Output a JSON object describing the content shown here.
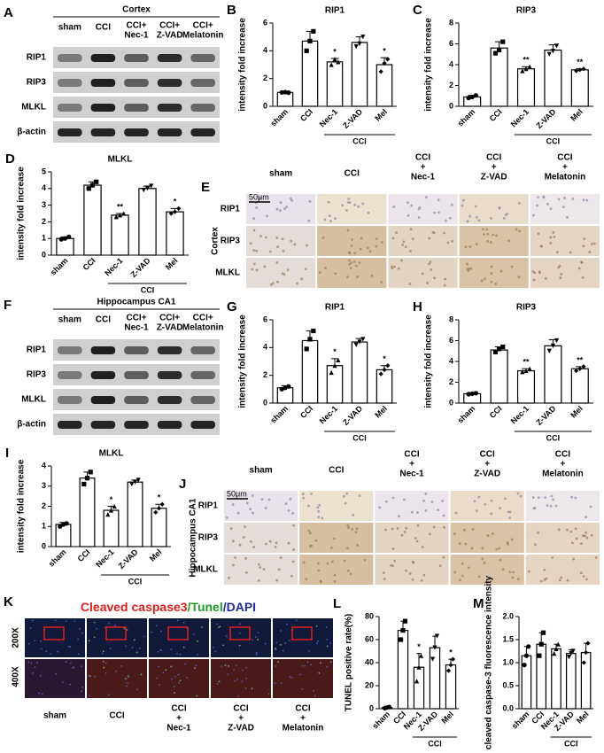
{
  "blots": [
    {
      "panel": "A",
      "title": "Cortex",
      "lanes": [
        [
          "sham"
        ],
        [
          "CCI"
        ],
        [
          "CCI+",
          "Nec-1"
        ],
        [
          "CCI+",
          "Z-VAD"
        ],
        [
          "CCI+",
          "Melatonin"
        ]
      ],
      "rows": [
        "RIP1",
        "RIP3",
        "MLKL",
        "β-actin"
      ]
    },
    {
      "panel": "F",
      "title": "Hippocampus CA1",
      "lanes": [
        [
          "sham"
        ],
        [
          "CCI"
        ],
        [
          "CCI+",
          "Nec-1"
        ],
        [
          "CCI+",
          "Z-VAD"
        ],
        [
          "CCI+",
          "Melatonin"
        ]
      ],
      "rows": [
        "RIP1",
        "RIP3",
        "MLKL",
        "β-actin"
      ]
    }
  ],
  "ihc": [
    {
      "panel": "E",
      "region": "Cortex",
      "scale_bar": "50μm",
      "columns": [
        [
          "sham"
        ],
        [
          "CCI"
        ],
        [
          "CCI",
          "+",
          "Nec-1"
        ],
        [
          "CCI",
          "+",
          "Z-VAD"
        ],
        [
          "CCI",
          "+",
          "Melatonin"
        ]
      ],
      "rows": [
        "RIP1",
        "RIP3",
        "MLKL"
      ]
    },
    {
      "panel": "J",
      "region": "Hippocampus CA1",
      "scale_bar": "50μm",
      "columns": [
        [
          "sham"
        ],
        [
          "CCI"
        ],
        [
          "CCI",
          "+",
          "Nec-1"
        ],
        [
          "CCI",
          "+",
          "Z-VAD"
        ],
        [
          "CCI",
          "+",
          "Melatonin"
        ]
      ],
      "rows": [
        "RIP1",
        "RIP3",
        "MLKL"
      ]
    }
  ],
  "fluorescence": {
    "panel": "K",
    "title": [
      "Cleaved caspase3",
      "/Tunel",
      "/DAPI"
    ],
    "rows": [
      "200X",
      "400X"
    ],
    "columns": [
      [
        "sham"
      ],
      [
        "CCI"
      ],
      [
        "CCI",
        "+",
        "Nec-1"
      ],
      [
        "CCI",
        "+",
        "Z-VAD"
      ],
      [
        "CCI",
        "+",
        "Melatonin"
      ]
    ]
  },
  "chart_data": [
    {
      "type": "bar",
      "panel": "B",
      "title": "RIP1",
      "ylabel": "intensity fold increase",
      "categories": [
        "sham",
        "CCI",
        "Nec-1",
        "Z-VAD",
        "Mel"
      ],
      "group_label": "CCI",
      "values": [
        1.0,
        4.7,
        3.2,
        4.6,
        3.0
      ],
      "errors": [
        0.05,
        0.7,
        0.25,
        0.4,
        0.5
      ],
      "points": [
        [
          1.0,
          1.02,
          0.98
        ],
        [
          4.0,
          4.7,
          5.4
        ],
        [
          3.0,
          3.4,
          3.2
        ],
        [
          4.3,
          4.5,
          5.0
        ],
        [
          2.5,
          3.1,
          3.4
        ]
      ],
      "annotations": [
        null,
        null,
        "*",
        null,
        "*"
      ],
      "ylim": [
        0,
        6
      ],
      "yticks": [
        0,
        2,
        4,
        6
      ]
    },
    {
      "type": "bar",
      "panel": "C",
      "title": "RIP3",
      "ylabel": "intensity fold increase",
      "categories": [
        "sham",
        "CCI",
        "Nec-1",
        "Z-VAD",
        "Mel"
      ],
      "group_label": "CCI",
      "values": [
        0.9,
        5.6,
        3.6,
        5.4,
        3.5
      ],
      "errors": [
        0.15,
        0.6,
        0.2,
        0.5,
        0.1
      ],
      "points": [
        [
          0.8,
          0.9,
          1.05
        ],
        [
          5.1,
          5.4,
          6.2
        ],
        [
          3.4,
          3.6,
          3.8
        ],
        [
          5.0,
          5.3,
          5.8
        ],
        [
          3.4,
          3.5,
          3.6
        ]
      ],
      "annotations": [
        null,
        null,
        "**",
        null,
        "**"
      ],
      "ylim": [
        0,
        8
      ],
      "yticks": [
        0,
        2,
        4,
        6,
        8
      ]
    },
    {
      "type": "bar",
      "panel": "D",
      "title": "MLKL",
      "ylabel": "intensity fold increase",
      "categories": [
        "sham",
        "CCI",
        "Nec-1",
        "Z-VAD",
        "Mel"
      ],
      "group_label": "CCI",
      "values": [
        1.0,
        4.2,
        2.4,
        4.0,
        2.6
      ],
      "errors": [
        0.1,
        0.2,
        0.1,
        0.15,
        0.2
      ],
      "points": [
        [
          0.95,
          1.0,
          1.1
        ],
        [
          4.0,
          4.2,
          4.4
        ],
        [
          2.3,
          2.4,
          2.5
        ],
        [
          3.9,
          4.0,
          4.15
        ],
        [
          2.5,
          2.6,
          2.8
        ]
      ],
      "annotations": [
        null,
        null,
        "**",
        null,
        "*"
      ],
      "ylim": [
        0,
        5
      ],
      "yticks": [
        0,
        1,
        2,
        3,
        4,
        5
      ]
    },
    {
      "type": "bar",
      "panel": "G",
      "title": "RIP1",
      "ylabel": "intensity fold increase",
      "categories": [
        "sham",
        "CCI",
        "Nec-1",
        "Z-VAD",
        "Mel"
      ],
      "group_label": "CCI",
      "values": [
        1.1,
        4.5,
        2.7,
        4.4,
        2.4
      ],
      "errors": [
        0.15,
        0.7,
        0.5,
        0.25,
        0.3
      ],
      "points": [
        [
          1.0,
          1.1,
          1.2
        ],
        [
          3.9,
          4.6,
          5.2
        ],
        [
          2.2,
          2.7,
          3.1
        ],
        [
          4.2,
          4.4,
          4.6
        ],
        [
          2.1,
          2.4,
          2.7
        ]
      ],
      "annotations": [
        null,
        null,
        "*",
        null,
        "*"
      ],
      "ylim": [
        0,
        6
      ],
      "yticks": [
        0,
        2,
        4,
        6
      ]
    },
    {
      "type": "bar",
      "panel": "H",
      "title": "RIP3",
      "ylabel": "intensity fold increase",
      "categories": [
        "sham",
        "CCI",
        "Nec-1",
        "Z-VAD",
        "Mel"
      ],
      "group_label": "CCI",
      "values": [
        0.9,
        5.1,
        3.1,
        5.5,
        3.3
      ],
      "errors": [
        0.1,
        0.3,
        0.2,
        0.6,
        0.2
      ],
      "points": [
        [
          0.85,
          0.9,
          0.95
        ],
        [
          4.9,
          5.2,
          5.4
        ],
        [
          3.0,
          3.1,
          3.3
        ],
        [
          5.0,
          5.5,
          6.0
        ],
        [
          3.1,
          3.3,
          3.5
        ]
      ],
      "annotations": [
        null,
        null,
        "**",
        null,
        "**"
      ],
      "ylim": [
        0,
        8
      ],
      "yticks": [
        0,
        2,
        4,
        6,
        8
      ]
    },
    {
      "type": "bar",
      "panel": "I",
      "title": "MLKL",
      "ylabel": "intensity fold increase",
      "categories": [
        "sham",
        "CCI",
        "Nec-1",
        "Z-VAD",
        "Mel"
      ],
      "group_label": "CCI",
      "values": [
        1.1,
        3.4,
        1.8,
        3.2,
        1.9
      ],
      "errors": [
        0.1,
        0.3,
        0.2,
        0.1,
        0.2
      ],
      "points": [
        [
          1.0,
          1.1,
          1.15
        ],
        [
          3.1,
          3.4,
          3.7
        ],
        [
          1.6,
          1.8,
          2.0
        ],
        [
          3.1,
          3.2,
          3.3
        ],
        [
          1.7,
          1.9,
          2.1
        ]
      ],
      "annotations": [
        null,
        null,
        "*",
        null,
        "*"
      ],
      "ylim": [
        0,
        4
      ],
      "yticks": [
        0,
        1,
        2,
        3,
        4
      ]
    },
    {
      "type": "bar",
      "panel": "L",
      "ylabel": "TUNEL positive rate(%)",
      "categories": [
        "sham",
        "CCI",
        "Nec-1",
        "Z-VAD",
        "Mel"
      ],
      "group_label": "CCI",
      "values": [
        1,
        68,
        36,
        53,
        38
      ],
      "errors": [
        1,
        8,
        12,
        10,
        5
      ],
      "points": [
        [
          0.5,
          1,
          1.5
        ],
        [
          60,
          68,
          76
        ],
        [
          24,
          36,
          46
        ],
        [
          43,
          53,
          63
        ],
        [
          33,
          38,
          43
        ]
      ],
      "annotations": [
        null,
        null,
        "*",
        null,
        "*"
      ],
      "ylim": [
        0,
        80
      ],
      "yticks": [
        0,
        20,
        40,
        60,
        80
      ]
    },
    {
      "type": "bar",
      "panel": "M",
      "ylabel": "cleaved caspase-3 fluorescence intensity",
      "categories": [
        "sham",
        "CCI",
        "Nec-1",
        "Z-VAD",
        "Mel"
      ],
      "group_label": "CCI",
      "values": [
        1.15,
        1.4,
        1.3,
        1.2,
        1.22
      ],
      "errors": [
        0.2,
        0.25,
        0.1,
        0.08,
        0.2
      ],
      "points": [
        [
          0.95,
          1.15,
          1.35
        ],
        [
          1.15,
          1.4,
          1.65
        ],
        [
          1.2,
          1.3,
          1.4
        ],
        [
          1.12,
          1.2,
          1.25
        ],
        [
          1.0,
          1.22,
          1.42
        ]
      ],
      "annotations": [
        null,
        null,
        null,
        null,
        null
      ],
      "ylim": [
        0,
        2
      ],
      "yticks": [
        {
          "value": 0,
          "label": "0.0"
        },
        {
          "value": 0.5,
          "label": "0.5"
        },
        {
          "value": 1,
          "label": "1.0"
        },
        {
          "value": 1.5,
          "label": "1.5"
        },
        {
          "value": 2,
          "label": "2.0"
        }
      ]
    }
  ]
}
